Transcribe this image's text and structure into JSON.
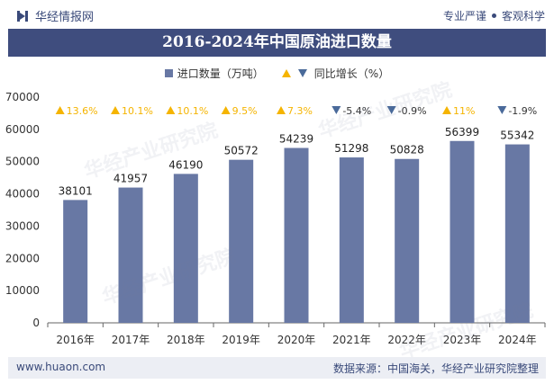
{
  "header": {
    "brand_name": "华经情报网",
    "slogan_left": "专业严谨",
    "slogan_right": "客观科学"
  },
  "watermark_text": "华经产业研究院",
  "colors": {
    "bar": "#6878a4",
    "title_bg": "#3f4d7e",
    "up": "#f5b400",
    "down": "#4a6a9a"
  },
  "chart_data": {
    "type": "bar",
    "title": "2016-2024年中国原油进口数量",
    "categories": [
      "2016年",
      "2017年",
      "2018年",
      "2019年",
      "2020年",
      "2021年",
      "2022年",
      "2023年",
      "2024年"
    ],
    "series": [
      {
        "name": "进口数量（万吨）",
        "values": [
          38101,
          41957,
          46190,
          50572,
          54239,
          51298,
          50828,
          56399,
          55342
        ]
      },
      {
        "name": "同比增长（%）",
        "values": [
          13.6,
          10.1,
          10.1,
          9.5,
          7.3,
          -5.4,
          -0.9,
          11,
          -1.9
        ],
        "labels": [
          "13.6%",
          "10.1%",
          "10.1%",
          "9.5%",
          "7.3%",
          "-5.4%",
          "-0.9%",
          "11%",
          "-1.9%"
        ]
      }
    ],
    "ylim": [
      0,
      70000
    ],
    "yticks": [
      0,
      10000,
      20000,
      30000,
      40000,
      50000,
      60000,
      70000
    ],
    "grid": false,
    "legend": "top-center"
  },
  "footer": {
    "url": "www.huaon.com",
    "source": "数据来源：中国海关，华经产业研究院整理"
  }
}
